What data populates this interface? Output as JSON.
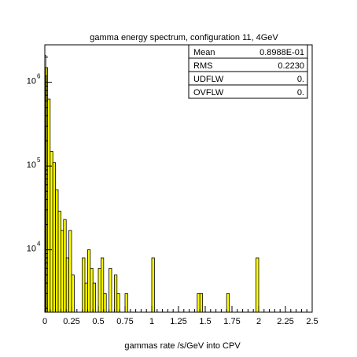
{
  "chart_data": {
    "type": "bar",
    "title": "gamma energy spectrum, configuration 11, 4GeV",
    "xlabel": "gammas rate /s/GeV into CPV",
    "ylabel": "",
    "xlim": [
      0,
      2.5
    ],
    "ylim": [
      1800,
      2800000
    ],
    "y_scale": "log",
    "x_ticks": [
      0,
      0.25,
      0.5,
      0.75,
      1,
      1.25,
      1.5,
      1.75,
      2,
      2.25,
      2.5
    ],
    "x_tick_labels": [
      "0",
      "0.25",
      "0.5",
      "0.75",
      "1",
      "1.25",
      "1.5",
      "1.75",
      "2",
      "2.25",
      "2.5"
    ],
    "y_ticks": [
      10000,
      100000,
      1000000
    ],
    "y_tick_labels": [
      {
        "base": "10",
        "exp": "4"
      },
      {
        "base": "10",
        "exp": "5"
      },
      {
        "base": "10",
        "exp": "6"
      }
    ],
    "bin_width": 0.025,
    "bin_start": 0,
    "values": [
      1500000,
      630000,
      150000,
      110000,
      52000,
      29000,
      17000,
      23000,
      8000,
      17000,
      5000,
      0,
      0,
      0,
      8000,
      4000,
      10000,
      6000,
      4000,
      0,
      6000,
      8000,
      3000,
      0,
      6000,
      0,
      5000,
      3000,
      0,
      0,
      3000,
      0,
      0,
      0,
      0,
      0,
      0,
      0,
      0,
      0,
      8000,
      0,
      0,
      0,
      0,
      0,
      0,
      0,
      0,
      0,
      0,
      0,
      0,
      0,
      0,
      0,
      0,
      3000,
      3000,
      0,
      0,
      0,
      0,
      0,
      0,
      0,
      0,
      0,
      3000,
      0,
      0,
      0,
      0,
      0,
      0,
      0,
      0,
      0,
      0,
      0,
      0,
      0,
      0,
      0,
      0,
      0,
      0,
      0,
      0,
      0,
      0,
      0,
      0,
      0,
      0,
      0,
      0,
      0,
      0,
      0
    ],
    "fine_bins": [
      {
        "x": 0.0,
        "value": 2100000
      },
      {
        "x": 0.005,
        "value": 1500000
      },
      {
        "x": 0.01,
        "value": 1200000
      },
      {
        "x": 0.015,
        "value": 300000
      }
    ],
    "extra_bins": [
      {
        "x": 1.975,
        "value": 8000
      }
    ],
    "stats": [
      {
        "label": "Mean",
        "value": "0.8988E-01"
      },
      {
        "label": "RMS",
        "value": "0.2230"
      },
      {
        "label": "UDFLW",
        "value": "0."
      },
      {
        "label": "OVFLW",
        "value": "0."
      }
    ],
    "fill_color": "#ffff00",
    "line_color": "#000000",
    "grid": false,
    "legend": "none"
  }
}
